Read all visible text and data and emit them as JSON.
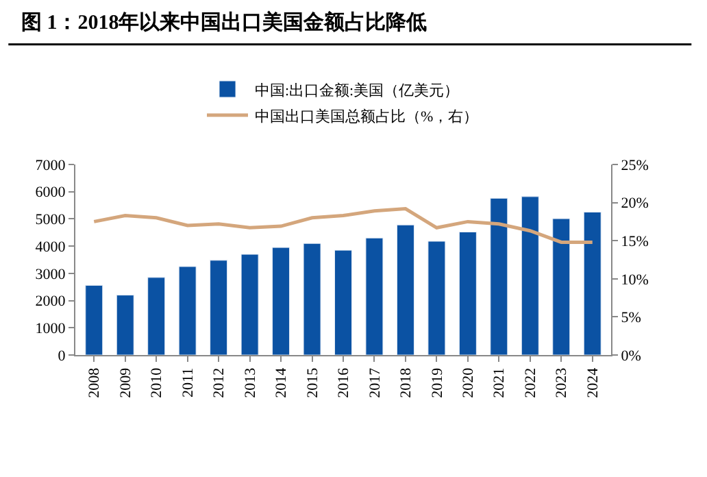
{
  "chart_data": {
    "type": "bar",
    "title": "图 1：2018年以来中国出口美国金额占比降低",
    "categories": [
      "2008",
      "2009",
      "2010",
      "2011",
      "2012",
      "2013",
      "2014",
      "2015",
      "2016",
      "2017",
      "2018",
      "2019",
      "2020",
      "2021",
      "2022",
      "2023",
      "2024"
    ],
    "series": [
      {
        "name": "中国:出口金额:美国（亿美元）",
        "color": "#0b52a3",
        "values": [
          2560,
          2200,
          2850,
          3250,
          3480,
          3700,
          3950,
          4100,
          3850,
          4300,
          4780,
          4180,
          4520,
          5760,
          5820,
          5010,
          5250
        ]
      },
      {
        "name": "中国出口美国总额占比（%，右）",
        "type": "line",
        "axis": "y2",
        "color": "#d4a67c",
        "marker": "none",
        "values": [
          17.5,
          18.3,
          18.0,
          17.0,
          17.2,
          16.7,
          16.9,
          18.0,
          18.3,
          18.9,
          19.2,
          16.7,
          17.5,
          17.2,
          16.3,
          14.8,
          14.8
        ]
      }
    ],
    "ylim": [
      0,
      7000
    ],
    "yticks": [
      0,
      1000,
      2000,
      3000,
      4000,
      5000,
      6000,
      7000
    ],
    "y2lim": [
      0,
      25
    ],
    "y2ticks": [
      {
        "value": 0,
        "label": "0%"
      },
      {
        "value": 5,
        "label": "5%"
      },
      {
        "value": 10,
        "label": "10%"
      },
      {
        "value": 15,
        "label": "15%"
      },
      {
        "value": 20,
        "label": "20%"
      },
      {
        "value": 25,
        "label": "25%"
      }
    ],
    "legend": "top"
  }
}
